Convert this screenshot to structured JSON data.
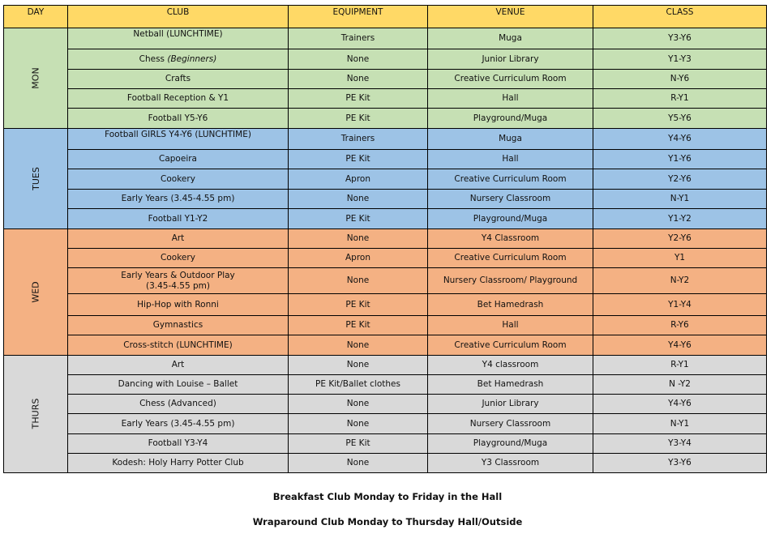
{
  "headers": [
    "DAY",
    "CLUB",
    "EQUIPMENT",
    "VENUE",
    "CLASS"
  ],
  "days": [
    {
      "day": "MON",
      "color": "#C6E0B4",
      "rows": [
        {
          "club": "Netball (LUNCHTIME)",
          "equipment": "Trainers",
          "venue": "Muga",
          "class": "Y3-Y6"
        },
        {
          "club": "Chess",
          "club_note": "(Beginners)",
          "equipment": "None",
          "venue": "Junior Library",
          "class": "Y1-Y3"
        },
        {
          "club": "Crafts",
          "equipment": "None",
          "venue": "Creative Curriculum Room",
          "class": "N-Y6"
        },
        {
          "club": "Football Reception & Y1",
          "equipment": "PE Kit",
          "venue": "Hall",
          "class": "R-Y1"
        },
        {
          "club": "Football Y5-Y6",
          "equipment": "PE Kit",
          "venue": "Playground/Muga",
          "class": "Y5-Y6"
        }
      ]
    },
    {
      "day": "TUES",
      "color": "#9DC3E6",
      "rows": [
        {
          "club": "Football GIRLS Y4-Y6 (LUNCHTIME)",
          "equipment": "Trainers",
          "venue": "Muga",
          "class": "Y4-Y6"
        },
        {
          "club": "Capoeira",
          "equipment": "PE Kit",
          "venue": "Hall",
          "class": "Y1-Y6"
        },
        {
          "club": "Cookery",
          "equipment": "Apron",
          "venue": "Creative Curriculum Room",
          "class": "Y2-Y6"
        },
        {
          "club": "Early Years (3.45-4.55 pm)",
          "equipment": "None",
          "venue": "Nursery Classroom",
          "class": "N-Y1"
        },
        {
          "club": "Football Y1-Y2",
          "equipment": "PE Kit",
          "venue": "Playground/Muga",
          "class": "Y1-Y2"
        }
      ]
    },
    {
      "day": "WED",
      "color": "#F4B183",
      "rows": [
        {
          "club": "Art",
          "equipment": "None",
          "venue": "Y4 Classroom",
          "class": "Y2-Y6"
        },
        {
          "club": "Cookery",
          "equipment": "Apron",
          "venue": "Creative Curriculum Room",
          "class": "Y1"
        },
        {
          "club": "Early Years & Outdoor Play",
          "club_line2": "(3.45-4.55 pm)",
          "equipment": "None",
          "venue": "Nursery Classroom/ Playground",
          "class": "N-Y2"
        },
        {
          "club": "Hip-Hop with Ronni",
          "equipment": "PE Kit",
          "venue": "Bet Hamedrash",
          "class": "Y1-Y4"
        },
        {
          "club": "Gymnastics",
          "equipment": "PE Kit",
          "venue": "Hall",
          "class": "R-Y6"
        },
        {
          "club": "Cross-stitch (LUNCHTIME)",
          "equipment": "None",
          "venue": "Creative Curriculum Room",
          "class": "Y4-Y6"
        }
      ]
    },
    {
      "day": "THURS",
      "color": "#D9D9D9",
      "rows": [
        {
          "club": "Art",
          "equipment": "None",
          "venue": "Y4 classroom",
          "class": "R-Y1"
        },
        {
          "club": "Dancing with Louise – Ballet",
          "equipment": "PE Kit/Ballet clothes",
          "venue": "Bet Hamedrash",
          "class": "N -Y2"
        },
        {
          "club": "Chess (Advanced)",
          "equipment": "None",
          "venue": "Junior Library",
          "class": "Y4-Y6"
        },
        {
          "club": "Early Years (3.45-4.55 pm)",
          "equipment": "None",
          "venue": "Nursery Classroom",
          "class": "N-Y1"
        },
        {
          "club": "Football Y3-Y4",
          "equipment": "PE Kit",
          "venue": "Playground/Muga",
          "class": "Y3-Y4"
        },
        {
          "club": "Kodesh: Holy Harry Potter Club",
          "equipment": "None",
          "venue": "Y3 Classroom",
          "class": "Y3-Y6"
        }
      ]
    }
  ],
  "footer": {
    "line1": "Breakfast Club Monday to Friday in the Hall",
    "line2": "Wraparound Club Monday to Thursday Hall/Outside"
  }
}
